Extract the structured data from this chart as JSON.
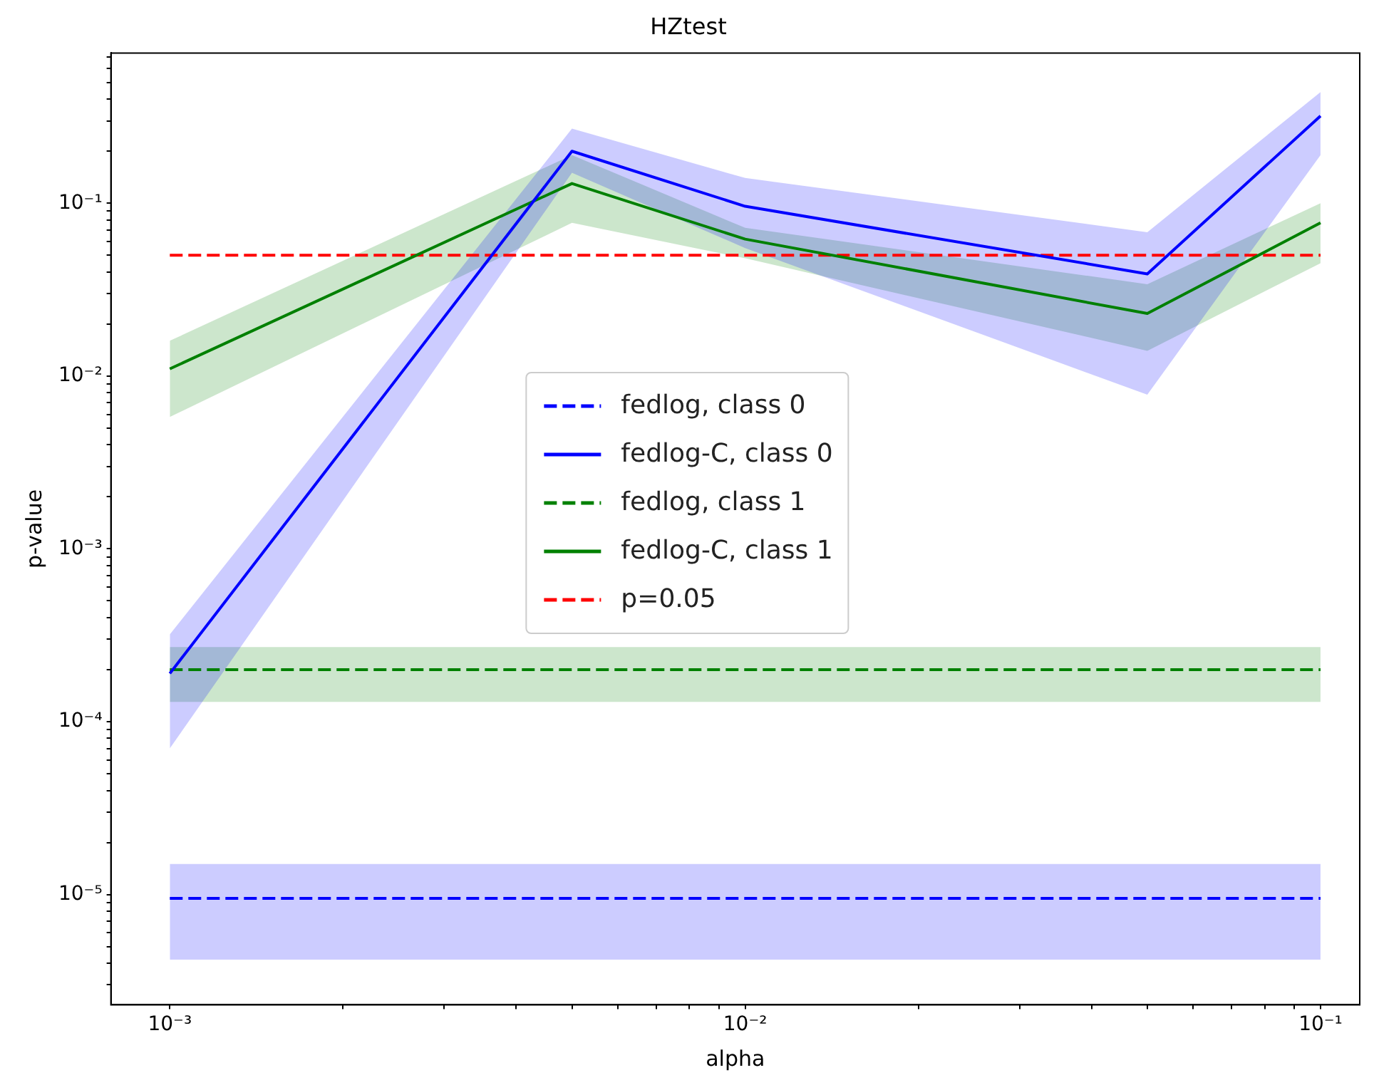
{
  "chart_data": {
    "type": "line",
    "title": "HZtest",
    "xlabel": "alpha",
    "ylabel": "p-value",
    "log": "xy",
    "grid": false,
    "legend": "center",
    "x": [
      0.001,
      0.005,
      0.01,
      0.05,
      0.1
    ],
    "xlim": [
      0.00079,
      0.117
    ],
    "ylim": [
      2.3e-06,
      0.74
    ],
    "xticks": [
      {
        "value": 0.001,
        "label": "10⁻³"
      },
      {
        "value": 0.002,
        "label": null
      },
      {
        "value": 0.003,
        "label": null
      },
      {
        "value": 0.004,
        "label": null
      },
      {
        "value": 0.005,
        "label": null
      },
      {
        "value": 0.006,
        "label": null
      },
      {
        "value": 0.007,
        "label": null
      },
      {
        "value": 0.008,
        "label": null
      },
      {
        "value": 0.009,
        "label": null
      },
      {
        "value": 0.01,
        "label": "10⁻²"
      },
      {
        "value": 0.02,
        "label": null
      },
      {
        "value": 0.03,
        "label": null
      },
      {
        "value": 0.04,
        "label": null
      },
      {
        "value": 0.05,
        "label": null
      },
      {
        "value": 0.06,
        "label": null
      },
      {
        "value": 0.07,
        "label": null
      },
      {
        "value": 0.08,
        "label": null
      },
      {
        "value": 0.09,
        "label": null
      },
      {
        "value": 0.1,
        "label": "10⁻¹"
      }
    ],
    "yticks": [
      {
        "value": 3e-06,
        "label": null
      },
      {
        "value": 4e-06,
        "label": null
      },
      {
        "value": 5e-06,
        "label": null
      },
      {
        "value": 6e-06,
        "label": null
      },
      {
        "value": 7e-06,
        "label": null
      },
      {
        "value": 8e-06,
        "label": null
      },
      {
        "value": 9e-06,
        "label": null
      },
      {
        "value": 1e-05,
        "label": "10⁻⁵"
      },
      {
        "value": 2e-05,
        "label": null
      },
      {
        "value": 3e-05,
        "label": null
      },
      {
        "value": 4e-05,
        "label": null
      },
      {
        "value": 5e-05,
        "label": null
      },
      {
        "value": 6e-05,
        "label": null
      },
      {
        "value": 7e-05,
        "label": null
      },
      {
        "value": 8e-05,
        "label": null
      },
      {
        "value": 9e-05,
        "label": null
      },
      {
        "value": 0.0001,
        "label": "10⁻⁴"
      },
      {
        "value": 0.0002,
        "label": null
      },
      {
        "value": 0.0003,
        "label": null
      },
      {
        "value": 0.0004,
        "label": null
      },
      {
        "value": 0.0005,
        "label": null
      },
      {
        "value": 0.0006,
        "label": null
      },
      {
        "value": 0.0007,
        "label": null
      },
      {
        "value": 0.0008,
        "label": null
      },
      {
        "value": 0.0009,
        "label": null
      },
      {
        "value": 0.001,
        "label": "10⁻³"
      },
      {
        "value": 0.002,
        "label": null
      },
      {
        "value": 0.003,
        "label": null
      },
      {
        "value": 0.004,
        "label": null
      },
      {
        "value": 0.005,
        "label": null
      },
      {
        "value": 0.006,
        "label": null
      },
      {
        "value": 0.007,
        "label": null
      },
      {
        "value": 0.008,
        "label": null
      },
      {
        "value": 0.009,
        "label": null
      },
      {
        "value": 0.01,
        "label": "10⁻²"
      },
      {
        "value": 0.02,
        "label": null
      },
      {
        "value": 0.03,
        "label": null
      },
      {
        "value": 0.04,
        "label": null
      },
      {
        "value": 0.05,
        "label": null
      },
      {
        "value": 0.06,
        "label": null
      },
      {
        "value": 0.07,
        "label": null
      },
      {
        "value": 0.08,
        "label": null
      },
      {
        "value": 0.09,
        "label": null
      },
      {
        "value": 0.1,
        "label": "10⁻¹"
      },
      {
        "value": 0.2,
        "label": null
      },
      {
        "value": 0.3,
        "label": null
      },
      {
        "value": 0.4,
        "label": null
      },
      {
        "value": 0.5,
        "label": null
      },
      {
        "value": 0.6,
        "label": null
      },
      {
        "value": 0.7,
        "label": null
      }
    ],
    "series": [
      {
        "name": "fedlog, class 0",
        "color": "#0000ff",
        "line_style": "dashed",
        "values": [
          9.5e-06,
          9.5e-06,
          9.5e-06,
          9.5e-06,
          9.5e-06
        ],
        "lower": [
          4.2e-06,
          4.2e-06,
          4.2e-06,
          4.2e-06,
          4.2e-06
        ],
        "upper": [
          1.5e-05,
          1.5e-05,
          1.5e-05,
          1.5e-05,
          1.5e-05
        ]
      },
      {
        "name": "fedlog-C, class 0",
        "color": "#0000ff",
        "line_style": "solid",
        "values": [
          0.00019,
          0.2,
          0.096,
          0.039,
          0.32
        ],
        "lower": [
          7e-05,
          0.15,
          0.055,
          0.0078,
          0.19
        ],
        "upper": [
          0.00032,
          0.27,
          0.14,
          0.068,
          0.44
        ]
      },
      {
        "name": "fedlog, class 1",
        "color": "#008000",
        "line_style": "dashed",
        "values": [
          0.0002,
          0.0002,
          0.0002,
          0.0002,
          0.0002
        ],
        "lower": [
          0.00013,
          0.00013,
          0.00013,
          0.00013,
          0.00013
        ],
        "upper": [
          0.00027,
          0.00027,
          0.00027,
          0.00027,
          0.00027
        ]
      },
      {
        "name": "fedlog-C, class 1",
        "color": "#008000",
        "line_style": "solid",
        "values": [
          0.011,
          0.13,
          0.062,
          0.023,
          0.077
        ],
        "lower": [
          0.0058,
          0.077,
          0.048,
          0.014,
          0.045
        ],
        "upper": [
          0.016,
          0.19,
          0.072,
          0.034,
          0.1
        ]
      },
      {
        "name": "p=0.05",
        "color": "#ff0000",
        "line_style": "dashed",
        "values": [
          0.05,
          0.05,
          0.05,
          0.05,
          0.05
        ]
      }
    ]
  }
}
